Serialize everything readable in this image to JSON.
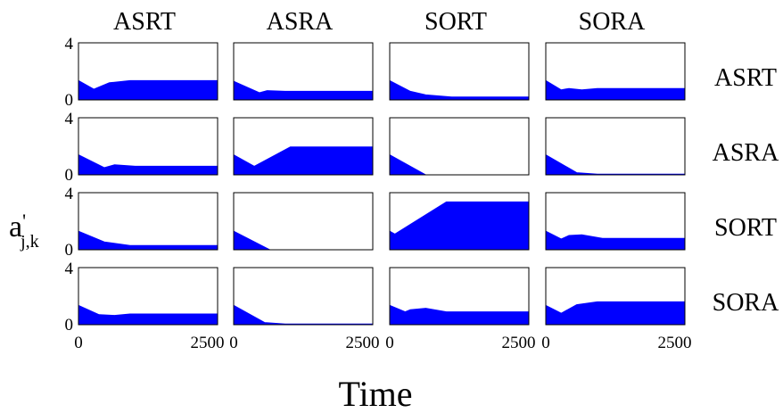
{
  "chart_data": {
    "type": "area",
    "column_labels": [
      "ASRT",
      "ASRA",
      "SORT",
      "SORA"
    ],
    "row_labels": [
      "ASRT",
      "ASRA",
      "SORT",
      "SORA"
    ],
    "xlabel": "Time",
    "ylabel_main": "a",
    "ylabel_prime": "'",
    "ylabel_sub": "j,k",
    "xlim": [
      0,
      2700
    ],
    "ylim": [
      0,
      4
    ],
    "yticks": [
      "0",
      "4"
    ],
    "xticks": [
      "0",
      "2500"
    ],
    "fill_color": "#0000ff",
    "grid": false,
    "legend": "none",
    "panels": [
      [
        {
          "x": [
            0,
            300,
            600,
            1000,
            2700
          ],
          "y": [
            1.35,
            0.75,
            1.2,
            1.35,
            1.35
          ]
        },
        {
          "x": [
            0,
            500,
            650,
            1000,
            2700
          ],
          "y": [
            1.3,
            0.5,
            0.65,
            0.6,
            0.6
          ]
        },
        {
          "x": [
            0,
            400,
            700,
            1200,
            2700
          ],
          "y": [
            1.35,
            0.6,
            0.35,
            0.2,
            0.2
          ]
        },
        {
          "x": [
            0,
            300,
            450,
            700,
            1000,
            2700
          ],
          "y": [
            1.35,
            0.7,
            0.8,
            0.7,
            0.8,
            0.8
          ]
        }
      ],
      [
        {
          "x": [
            0,
            500,
            700,
            1100,
            2700
          ],
          "y": [
            1.4,
            0.5,
            0.7,
            0.6,
            0.6
          ]
        },
        {
          "x": [
            0,
            400,
            1100,
            2700
          ],
          "y": [
            1.4,
            0.6,
            1.95,
            1.95
          ]
        },
        {
          "x": [
            0,
            700,
            2700
          ],
          "y": [
            1.4,
            0.0,
            0.0
          ]
        },
        {
          "x": [
            0,
            600,
            1000,
            2700
          ],
          "y": [
            1.4,
            0.15,
            0.05,
            0.05
          ]
        }
      ],
      [
        {
          "x": [
            0,
            500,
            1000,
            2700
          ],
          "y": [
            1.3,
            0.55,
            0.3,
            0.3
          ]
        },
        {
          "x": [
            0,
            700,
            2700
          ],
          "y": [
            1.3,
            0.0,
            0.0
          ]
        },
        {
          "x": [
            0,
            100,
            1100,
            2700
          ],
          "y": [
            1.3,
            1.1,
            3.35,
            3.35
          ]
        },
        {
          "x": [
            0,
            300,
            450,
            700,
            1100,
            2700
          ],
          "y": [
            1.3,
            0.75,
            1.0,
            1.05,
            0.8,
            0.8
          ]
        }
      ],
      [
        {
          "x": [
            0,
            400,
            700,
            1000,
            2700
          ],
          "y": [
            1.35,
            0.7,
            0.65,
            0.75,
            0.75
          ]
        },
        {
          "x": [
            0,
            600,
            1000,
            2700
          ],
          "y": [
            1.35,
            0.15,
            0.05,
            0.05
          ]
        },
        {
          "x": [
            0,
            300,
            400,
            700,
            1100,
            2700
          ],
          "y": [
            1.35,
            0.9,
            1.05,
            1.15,
            0.9,
            0.9
          ]
        },
        {
          "x": [
            0,
            300,
            600,
            1000,
            2700
          ],
          "y": [
            1.35,
            0.8,
            1.4,
            1.6,
            1.6
          ]
        }
      ]
    ]
  }
}
